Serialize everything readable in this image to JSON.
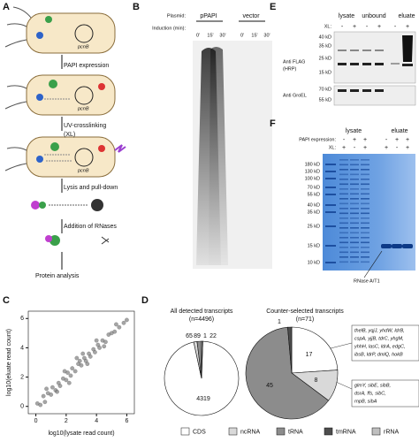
{
  "panels": {
    "a": {
      "label": "A",
      "steps": [
        "PAPI expression",
        "UV-crosslinking",
        "(XL)",
        "Lysis and pull-down",
        "Addition of RNases",
        "Protein analysis"
      ],
      "gene": "pcnB"
    },
    "b": {
      "label": "B",
      "plasmid_label": "Plasmid:",
      "plasmids": [
        "pPAPI",
        "vector"
      ],
      "induction_label": "Induction (min):",
      "lanes": [
        "0'",
        "15'",
        "30'",
        "0'",
        "15'",
        "30'"
      ]
    },
    "c": {
      "label": "C"
    },
    "d": {
      "label": "D",
      "box1": [
        "thelB, yqjJ, yhdW, ldrB,",
        "cspA, yjjB, tdrC, yhgM,",
        "yhhH, lasC, ldrA, edgC,",
        "ibsB, ldrP, dmlQ, hokB"
      ],
      "box2": [
        "glmY, sibE, sibB,",
        "dsrA, ffs, sibC,",
        "rnpB, sibA"
      ]
    },
    "e": {
      "label": "E",
      "groups": [
        "lysate",
        "unbound",
        "eluate"
      ],
      "xl_label": "XL:",
      "xl": [
        "-",
        "+",
        "-",
        "+",
        "-",
        "+"
      ],
      "markers_top": [
        "40 kD",
        "35 kD",
        "25 kD",
        "15 kD"
      ],
      "markers_bottom": [
        "70 kD",
        "55 kD"
      ],
      "antibody_top": [
        "Anti FLAG",
        "(HRP)"
      ],
      "antibody_bottom": "Anti GroEL"
    },
    "f": {
      "label": "F",
      "groups": [
        "lysate",
        "eluate"
      ],
      "papi_label": "PAPI expression:",
      "papi": [
        "-",
        "+",
        "+",
        "-",
        "+",
        "+"
      ],
      "xl_label": "XL:",
      "xl": [
        "+",
        "-",
        "+",
        "+",
        "-",
        "+"
      ],
      "markers": [
        "180 kD",
        "130 kD",
        "100 kD",
        "70 kD",
        "55 kD",
        "40 kD",
        "35 kD",
        "25 kD",
        "15 kD",
        "10 kD"
      ],
      "annotation": "RNase A/T1"
    }
  },
  "chart_data": [
    {
      "type": "scatter",
      "xlabel": "log10(lysate read count)",
      "ylabel": "log10(eluate read count)",
      "color": "#7f7f7f",
      "x": [
        0.1,
        0.3,
        0.5,
        0.6,
        0.8,
        1.0,
        1.1,
        1.3,
        1.5,
        1.6,
        1.8,
        2.0,
        2.1,
        2.3,
        2.4,
        2.6,
        2.8,
        2.9,
        3.0,
        3.2,
        3.3,
        3.5,
        3.6,
        3.8,
        3.9,
        4.1,
        4.2,
        4.4,
        4.6,
        4.8,
        5.0,
        5.2,
        5.5,
        5.8,
        6.0,
        0.7,
        1.4,
        2.2,
        2.7,
        3.4,
        4.0,
        4.5,
        1.9,
        3.1,
        5.3
      ],
      "y": [
        0.2,
        0.1,
        0.7,
        0.3,
        0.9,
        0.8,
        1.3,
        1.1,
        1.6,
        1.4,
        1.9,
        1.8,
        2.3,
        2.1,
        2.6,
        2.4,
        2.9,
        3.1,
        2.8,
        3.3,
        3.1,
        3.6,
        3.4,
        3.9,
        3.7,
        4.2,
        4.0,
        4.5,
        4.4,
        4.9,
        5.0,
        5.1,
        5.4,
        5.7,
        5.9,
        1.2,
        1.0,
        1.6,
        3.3,
        2.9,
        4.5,
        4.1,
        2.4,
        3.6,
        5.6
      ],
      "xlim": [
        -0.5,
        6.5
      ],
      "ylim": [
        -0.5,
        6.5
      ],
      "xticks": [
        0,
        2,
        4,
        6
      ],
      "yticks": [
        0,
        2,
        4,
        6
      ]
    },
    {
      "type": "pie",
      "title": "All detected transcripts",
      "subtitle": "(n=4496)",
      "categories": [
        "CDS",
        "ncRNA",
        "tRNA",
        "tmRNA",
        "rRNA"
      ],
      "values": [
        4319,
        65,
        89,
        1,
        22
      ],
      "colors": [
        "#ffffff",
        "#d9d9d9",
        "#8c8c8c",
        "#4d4d4d",
        "#bfbfbf"
      ]
    },
    {
      "type": "pie",
      "title": "Counter-selected transcripts",
      "subtitle": "(n=71)",
      "categories": [
        "CDS",
        "ncRNA",
        "tRNA",
        "tmRNA"
      ],
      "values": [
        17,
        8,
        45,
        1
      ],
      "colors": [
        "#ffffff",
        "#d9d9d9",
        "#8c8c8c",
        "#4d4d4d"
      ]
    }
  ]
}
